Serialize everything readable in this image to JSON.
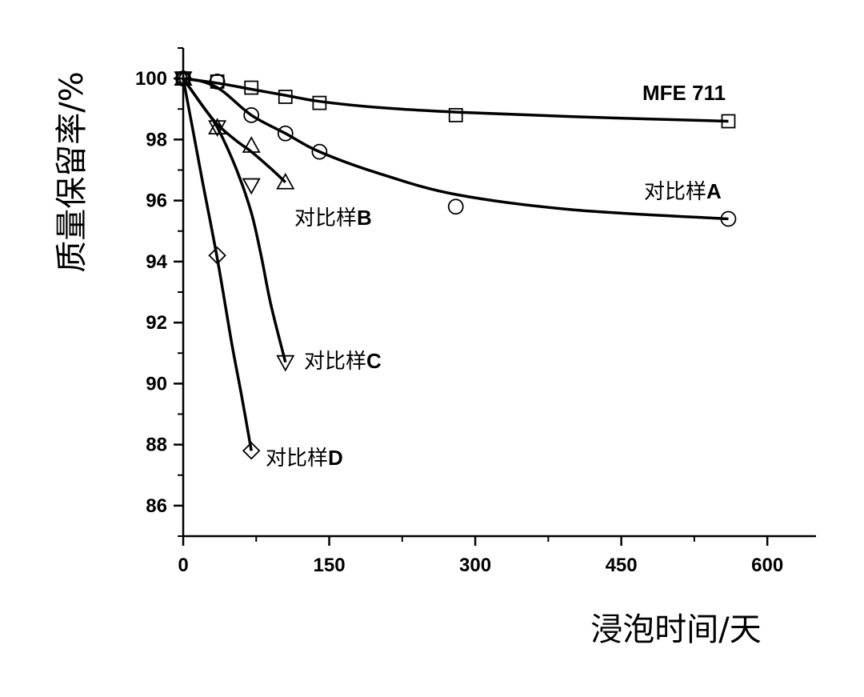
{
  "chart_data": {
    "type": "line",
    "xlabel": "浸泡时间/天",
    "ylabel": "质量保留率/%",
    "xlim": [
      0,
      650
    ],
    "ylim": [
      85,
      101
    ],
    "x_ticks": [
      0,
      150,
      300,
      450,
      600
    ],
    "y_ticks": [
      86,
      88,
      90,
      92,
      94,
      96,
      98,
      100
    ],
    "grid": false,
    "series": [
      {
        "name": "MFE 711",
        "label_parts": [
          "MFE 711"
        ],
        "marker": "square",
        "x": [
          0,
          35,
          70,
          105,
          140,
          280,
          560
        ],
        "y": [
          100.0,
          99.9,
          99.7,
          99.4,
          99.2,
          98.8,
          98.6
        ],
        "fit_x": [
          0,
          35,
          70,
          105,
          140,
          200,
          280,
          400,
          560
        ],
        "fit_y": [
          100.0,
          99.85,
          99.65,
          99.45,
          99.25,
          99.05,
          98.9,
          98.75,
          98.6
        ]
      },
      {
        "name": "对比样A",
        "label_parts": [
          "对比样",
          "A"
        ],
        "marker": "circle",
        "x": [
          0,
          35,
          70,
          105,
          140,
          280,
          560
        ],
        "y": [
          100.0,
          99.9,
          98.8,
          98.2,
          97.6,
          95.8,
          95.4
        ],
        "fit_x": [
          0,
          20,
          40,
          70,
          105,
          140,
          200,
          280,
          400,
          560
        ],
        "fit_y": [
          100.0,
          99.9,
          99.6,
          98.8,
          98.2,
          97.6,
          96.9,
          96.2,
          95.7,
          95.4
        ]
      },
      {
        "name": "对比样B",
        "label_parts": [
          "对比样",
          "B"
        ],
        "marker": "triangle-up",
        "x": [
          0,
          35,
          70,
          105
        ],
        "y": [
          100.0,
          98.4,
          97.8,
          96.6
        ],
        "fit_x": [
          0,
          20,
          35,
          55,
          70,
          90,
          105
        ],
        "fit_y": [
          100.0,
          99.1,
          98.5,
          97.95,
          97.6,
          97.05,
          96.6
        ]
      },
      {
        "name": "对比样C",
        "label_parts": [
          "对比样",
          "C"
        ],
        "marker": "triangle-down",
        "x": [
          0,
          35,
          70,
          105
        ],
        "y": [
          100.0,
          98.4,
          96.5,
          90.7
        ],
        "fit_x": [
          0,
          20,
          35,
          55,
          70,
          80,
          90,
          105
        ],
        "fit_y": [
          100.0,
          99.1,
          98.4,
          97.0,
          95.6,
          94.2,
          92.6,
          90.7
        ]
      },
      {
        "name": "对比样D",
        "label_parts": [
          "对比样",
          "D"
        ],
        "marker": "diamond",
        "x": [
          0,
          35,
          70
        ],
        "y": [
          100.0,
          94.2,
          87.8
        ],
        "fit_x": [
          0,
          10,
          20,
          35,
          50,
          60,
          70
        ],
        "fit_y": [
          100.0,
          98.3,
          96.6,
          94.1,
          91.3,
          89.6,
          87.8
        ]
      }
    ]
  }
}
